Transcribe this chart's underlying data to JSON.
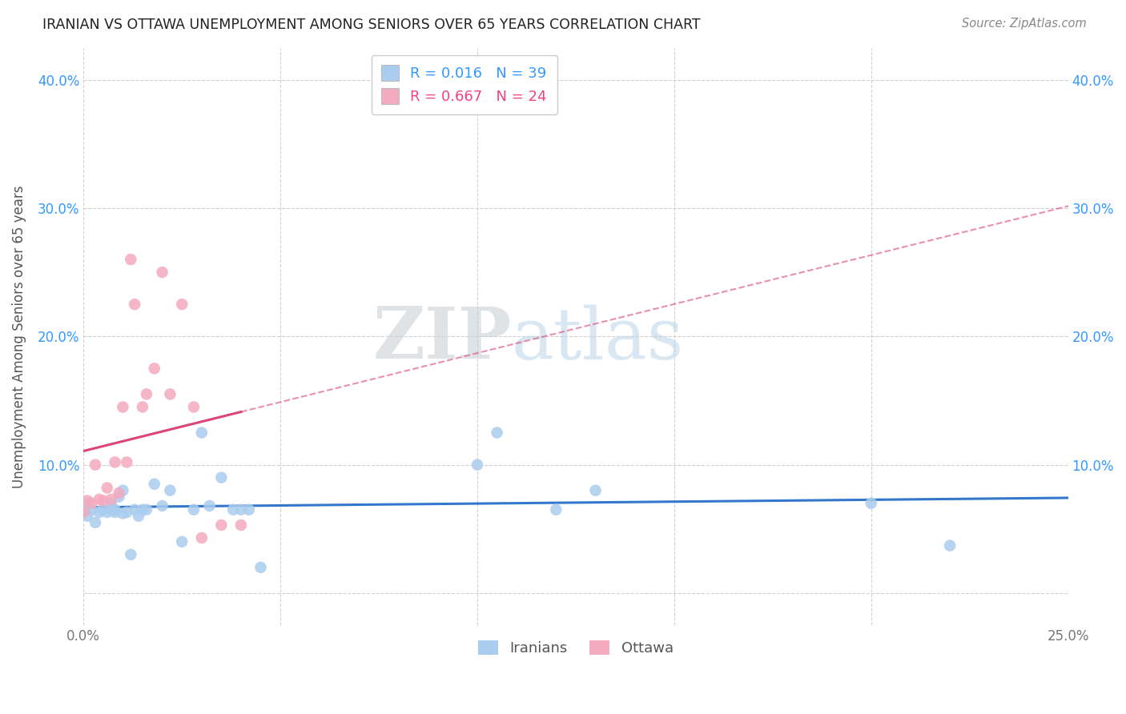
{
  "title": "IRANIAN VS OTTAWA UNEMPLOYMENT AMONG SENIORS OVER 65 YEARS CORRELATION CHART",
  "source": "Source: ZipAtlas.com",
  "ylabel": "Unemployment Among Seniors over 65 years",
  "xlabel_iranians": "Iranians",
  "xlabel_ottawa": "Ottawa",
  "watermark_zip": "ZIP",
  "watermark_atlas": "atlas",
  "xlim": [
    0.0,
    0.25
  ],
  "ylim": [
    -0.025,
    0.425
  ],
  "iranian_R": 0.016,
  "iranian_N": 39,
  "ottawa_R": 0.667,
  "ottawa_N": 24,
  "iranian_color": "#aaccee",
  "ottawa_color": "#f4aabf",
  "iranian_line_color": "#3377cc",
  "ottawa_line_color": "#dd4477",
  "text_color_blue": "#3399ff",
  "text_color_pink": "#ee4488",
  "background_color": "#ffffff",
  "grid_color": "#cccccc",
  "iranians_x": [
    0.0,
    0.001,
    0.001,
    0.002,
    0.003,
    0.004,
    0.005,
    0.006,
    0.007,
    0.007,
    0.008,
    0.008,
    0.009,
    0.01,
    0.01,
    0.011,
    0.012,
    0.013,
    0.014,
    0.015,
    0.016,
    0.018,
    0.02,
    0.022,
    0.025,
    0.028,
    0.03,
    0.032,
    0.035,
    0.038,
    0.04,
    0.042,
    0.045,
    0.1,
    0.105,
    0.12,
    0.13,
    0.2,
    0.22
  ],
  "iranians_y": [
    0.065,
    0.06,
    0.07,
    0.065,
    0.055,
    0.063,
    0.065,
    0.063,
    0.07,
    0.065,
    0.063,
    0.065,
    0.075,
    0.08,
    0.062,
    0.063,
    0.03,
    0.065,
    0.06,
    0.065,
    0.065,
    0.085,
    0.068,
    0.08,
    0.04,
    0.065,
    0.125,
    0.068,
    0.09,
    0.065,
    0.065,
    0.065,
    0.02,
    0.1,
    0.125,
    0.065,
    0.08,
    0.07,
    0.037
  ],
  "ottawa_x": [
    0.0,
    0.001,
    0.002,
    0.003,
    0.004,
    0.005,
    0.006,
    0.007,
    0.008,
    0.009,
    0.01,
    0.011,
    0.012,
    0.013,
    0.015,
    0.016,
    0.018,
    0.02,
    0.022,
    0.025,
    0.028,
    0.03,
    0.035,
    0.04
  ],
  "ottawa_y": [
    0.063,
    0.072,
    0.07,
    0.1,
    0.073,
    0.072,
    0.082,
    0.073,
    0.102,
    0.078,
    0.145,
    0.102,
    0.26,
    0.225,
    0.145,
    0.155,
    0.175,
    0.25,
    0.155,
    0.225,
    0.145,
    0.043,
    0.053,
    0.053
  ]
}
